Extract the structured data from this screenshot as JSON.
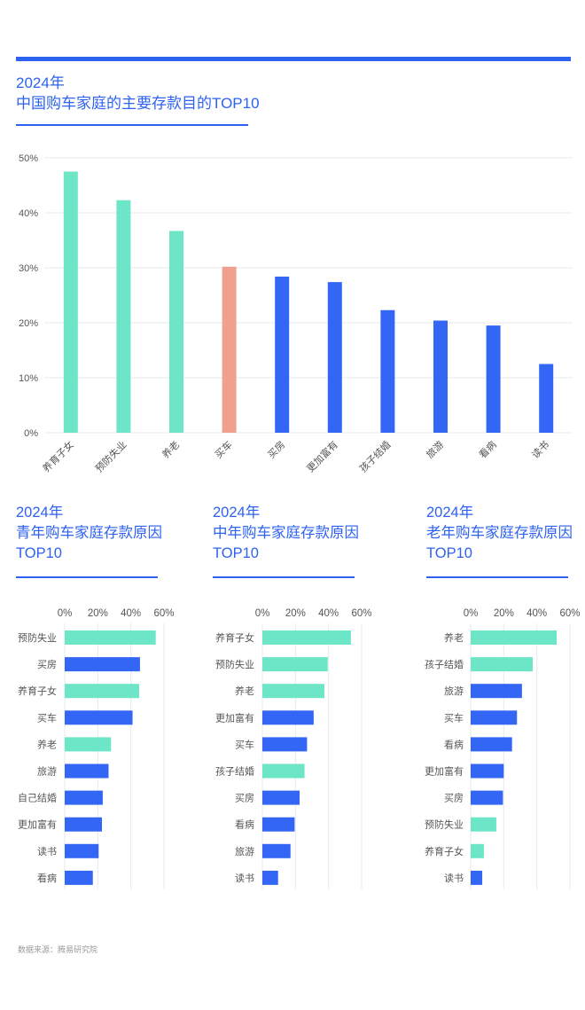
{
  "colors": {
    "accent": "#2e62f0",
    "mint": "#6ce6c6",
    "salmon": "#f0a08e",
    "blue": "#3366f5",
    "grid": "#e6e8ec",
    "text": "#555555"
  },
  "main": {
    "title_line1": "2024年",
    "title_line2": "中国购车家庭的主要存款目的TOP10"
  },
  "panels": [
    {
      "title_line1": "2024年",
      "title_line2": "青年购车家庭存款原因",
      "title_line3": "TOP10"
    },
    {
      "title_line1": "2024年",
      "title_line2": "中年购车家庭存款原因",
      "title_line3": "TOP10"
    },
    {
      "title_line1": "2024年",
      "title_line2": "老年购车家庭存款原因",
      "title_line3": "TOP10"
    }
  ],
  "source": "数据来源：腾易研究院",
  "chart_data": [
    {
      "type": "bar",
      "title": "中国购车家庭的主要存款目的TOP10",
      "categories": [
        "养育子女",
        "预防失业",
        "养老",
        "买车",
        "买房",
        "更加富有",
        "孩子结婚",
        "旅游",
        "看病",
        "读书"
      ],
      "values": [
        47.5,
        42.3,
        36.7,
        30.2,
        28.4,
        27.4,
        22.3,
        20.4,
        19.5,
        12.5
      ],
      "colors": [
        "#6ce6c6",
        "#6ce6c6",
        "#6ce6c6",
        "#f0a08e",
        "#3366f5",
        "#3366f5",
        "#3366f5",
        "#3366f5",
        "#3366f5",
        "#3366f5"
      ],
      "yticks": [
        "0%",
        "10%",
        "20%",
        "30%",
        "40%",
        "50%"
      ],
      "ylim": [
        0,
        50
      ],
      "grid": true
    },
    {
      "type": "bar",
      "orientation": "horizontal",
      "title": "青年购车家庭存款原因TOP10",
      "categories": [
        "预防失业",
        "买房",
        "养育子女",
        "买车",
        "养老",
        "旅游",
        "自己结婚",
        "更加富有",
        "读书",
        "看病"
      ],
      "values": [
        55,
        45.5,
        45,
        41,
        28,
        26.5,
        23,
        22.5,
        20.5,
        17
      ],
      "colors": [
        "#6ce6c6",
        "#3366f5",
        "#6ce6c6",
        "#3366f5",
        "#6ce6c6",
        "#3366f5",
        "#3366f5",
        "#3366f5",
        "#3366f5",
        "#3366f5"
      ],
      "xticks": [
        "0%",
        "20%",
        "40%",
        "60%"
      ],
      "xlim": [
        0,
        60
      ],
      "grid": true
    },
    {
      "type": "bar",
      "orientation": "horizontal",
      "title": "中年购车家庭存款原因TOP10",
      "categories": [
        "养育子女",
        "预防失业",
        "养老",
        "更加富有",
        "买车",
        "孩子结婚",
        "买房",
        "看病",
        "旅游",
        "读书"
      ],
      "values": [
        53.5,
        39.5,
        37.5,
        31,
        27,
        25.5,
        22.5,
        19.5,
        17,
        9.5
      ],
      "colors": [
        "#6ce6c6",
        "#6ce6c6",
        "#6ce6c6",
        "#3366f5",
        "#3366f5",
        "#6ce6c6",
        "#3366f5",
        "#3366f5",
        "#3366f5",
        "#3366f5"
      ],
      "xticks": [
        "0%",
        "20%",
        "40%",
        "60%"
      ],
      "xlim": [
        0,
        60
      ],
      "grid": true
    },
    {
      "type": "bar",
      "orientation": "horizontal",
      "title": "老年购车家庭存款原因TOP10",
      "categories": [
        "养老",
        "孩子结婚",
        "旅游",
        "买车",
        "看病",
        "更加富有",
        "买房",
        "预防失业",
        "养育子女",
        "读书"
      ],
      "values": [
        52,
        37.5,
        31,
        28,
        25,
        20,
        19.5,
        15.5,
        8,
        7
      ],
      "colors": [
        "#6ce6c6",
        "#6ce6c6",
        "#3366f5",
        "#3366f5",
        "#3366f5",
        "#3366f5",
        "#3366f5",
        "#6ce6c6",
        "#6ce6c6",
        "#3366f5"
      ],
      "xticks": [
        "0%",
        "20%",
        "40%",
        "60%"
      ],
      "xlim": [
        0,
        60
      ],
      "grid": true
    }
  ]
}
